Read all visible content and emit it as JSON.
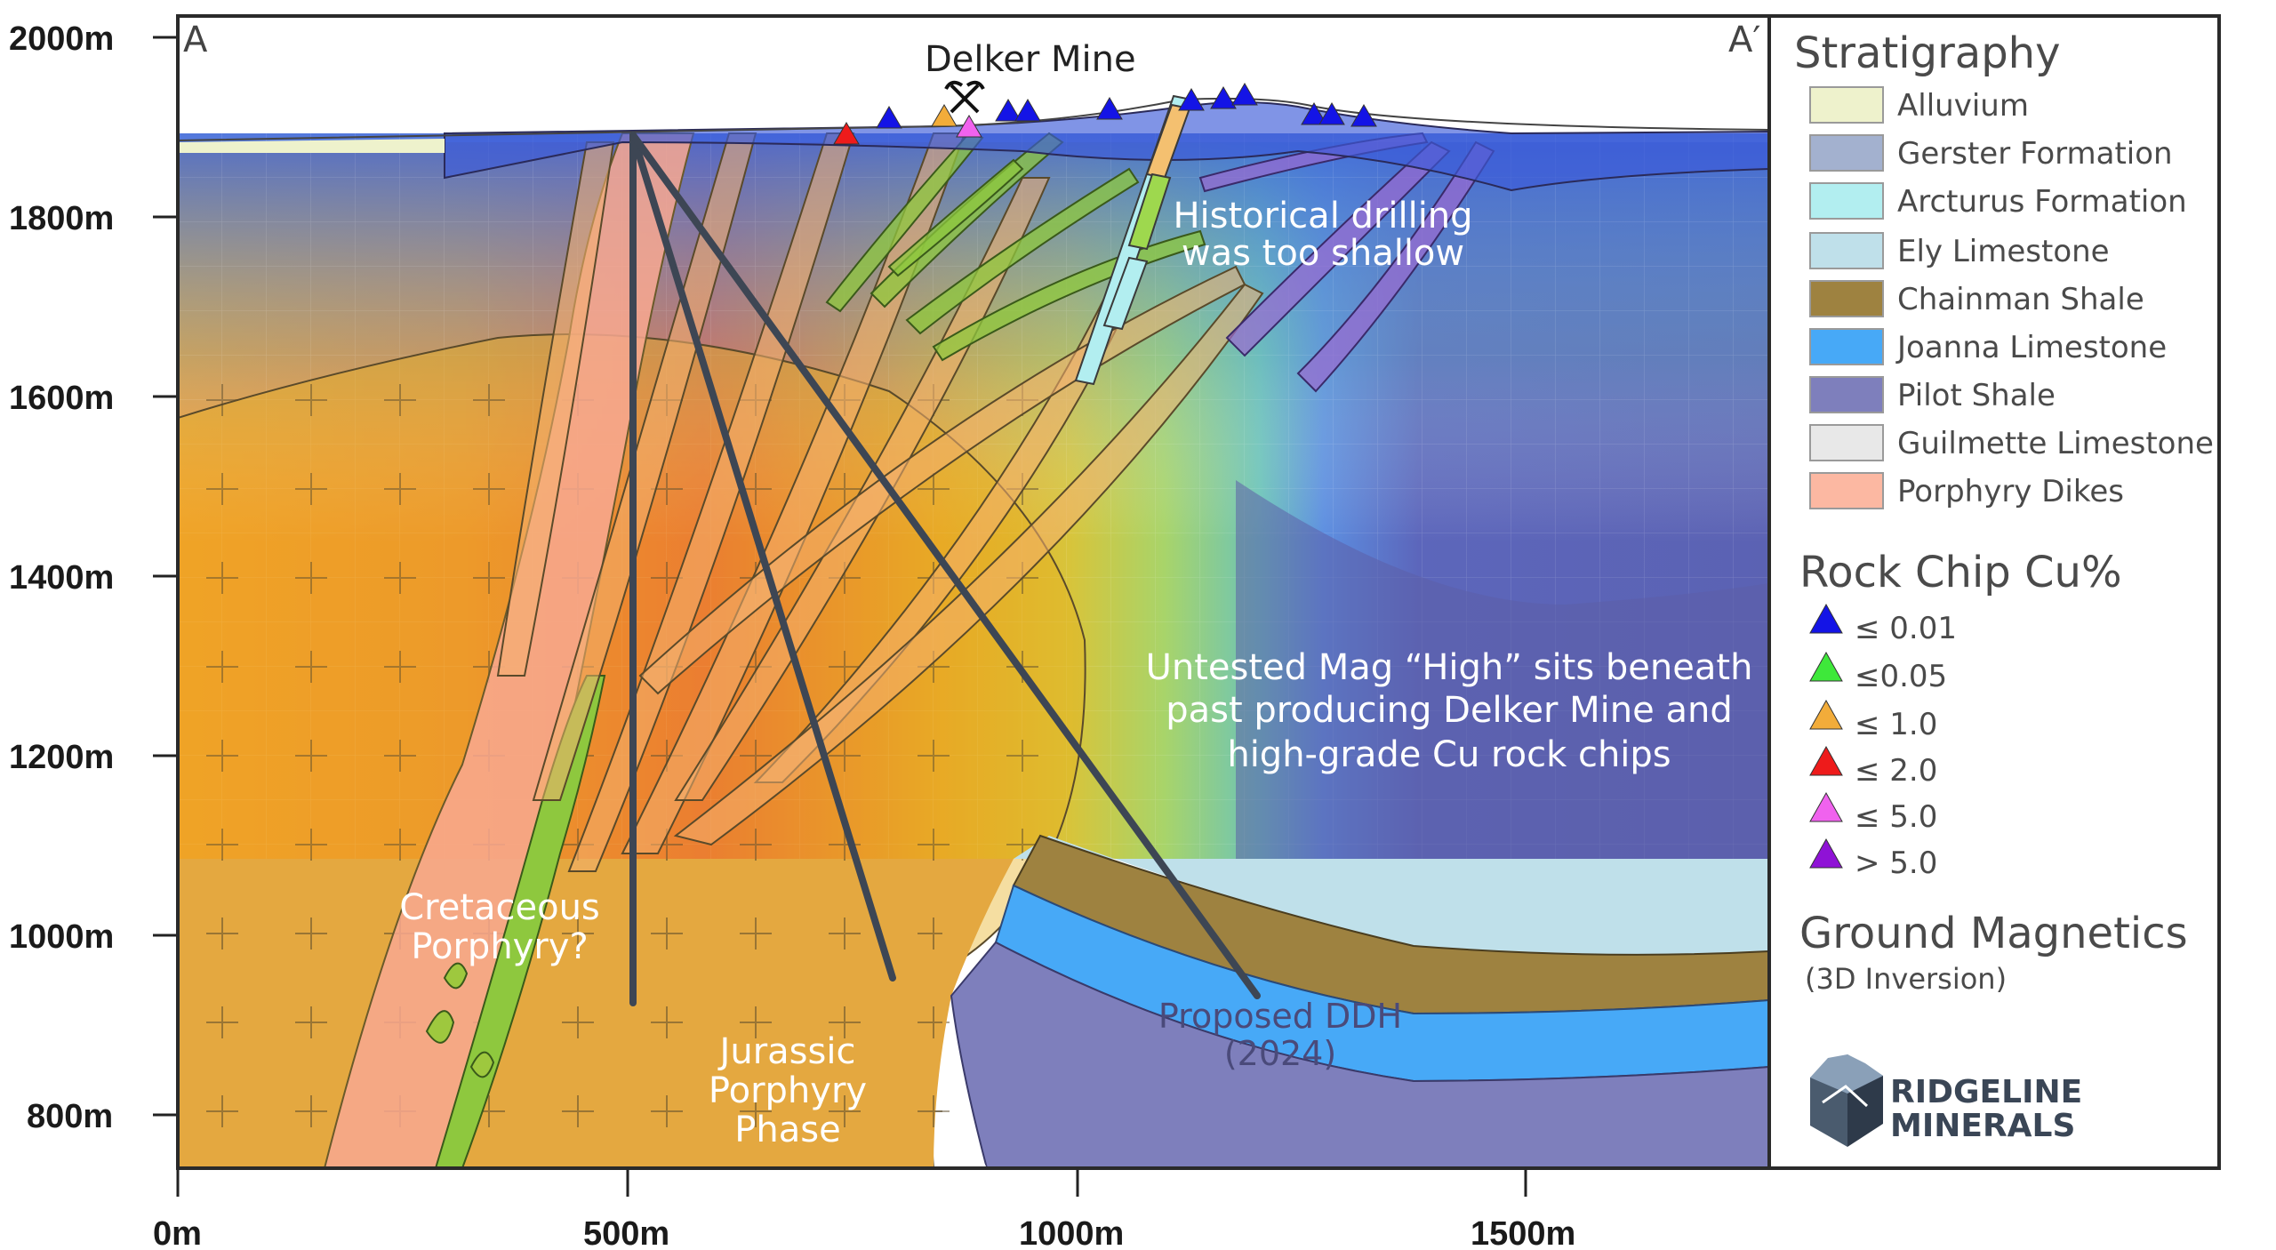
{
  "section": {
    "start_label": "A",
    "end_label": "A′",
    "mine_label": "Delker Mine"
  },
  "axes": {
    "y_ticks": [
      "2000m",
      "1800m",
      "1600m",
      "1400m",
      "1200m",
      "1000m",
      "800m"
    ],
    "x_ticks": [
      "0m",
      "500m",
      "1000m",
      "1500m"
    ]
  },
  "annotations": {
    "historical_line1": "Historical drilling",
    "historical_line2": "was too shallow",
    "untested_line1": "Untested Mag “High” sits beneath",
    "untested_line2": "past producing Delker Mine and",
    "untested_line3": "high-grade Cu rock chips",
    "cretaceous_line1": "Cretaceous",
    "cretaceous_line2": "Porphyry?",
    "jurassic_line1": "Jurassic",
    "jurassic_line2": "Porphyry",
    "jurassic_line3": "Phase",
    "proposed_line1": "Proposed DDH",
    "proposed_line2": "(2024)"
  },
  "legend": {
    "strat_title": "Stratigraphy",
    "strat_items": [
      {
        "label": "Alluvium",
        "color": "#eef2cc"
      },
      {
        "label": "Gerster Formation",
        "color": "#a3b1cf"
      },
      {
        "label": "Arcturus Formation",
        "color": "#b2eef0"
      },
      {
        "label": "Ely Limestone",
        "color": "#bfe0ea"
      },
      {
        "label": "Chainman Shale",
        "color": "#9e8240"
      },
      {
        "label": "Joanna Limestone",
        "color": "#47a9f7"
      },
      {
        "label": "Pilot Shale",
        "color": "#7e7fbc"
      },
      {
        "label": "Guilmette Limestone",
        "color": "#e8e8e8"
      },
      {
        "label": "Porphyry Dikes",
        "color": "#fcb8a2"
      }
    ],
    "rock_title": "Rock Chip Cu%",
    "rock_items": [
      {
        "label": "≤ 0.01",
        "color": "#1414e6"
      },
      {
        "label": "≤0.05",
        "color": "#3ee83a"
      },
      {
        "label": "≤ 1.0",
        "color": "#f2ac3a"
      },
      {
        "label": "≤ 2.0",
        "color": "#ee1b1b"
      },
      {
        "label": "≤ 5.0",
        "color": "#f062ee"
      },
      {
        "label": "> 5.0",
        "color": "#8f12d6"
      }
    ],
    "mag_title": "Ground Magnetics",
    "mag_subtitle": "(3D Inversion)"
  },
  "logo": {
    "line1": "RIDGELINE",
    "line2": "MINERALS"
  },
  "icons": {
    "mine": "crossed-pickaxes-icon",
    "sample": "triangle-icon",
    "logo": "mountain-logo-icon"
  }
}
